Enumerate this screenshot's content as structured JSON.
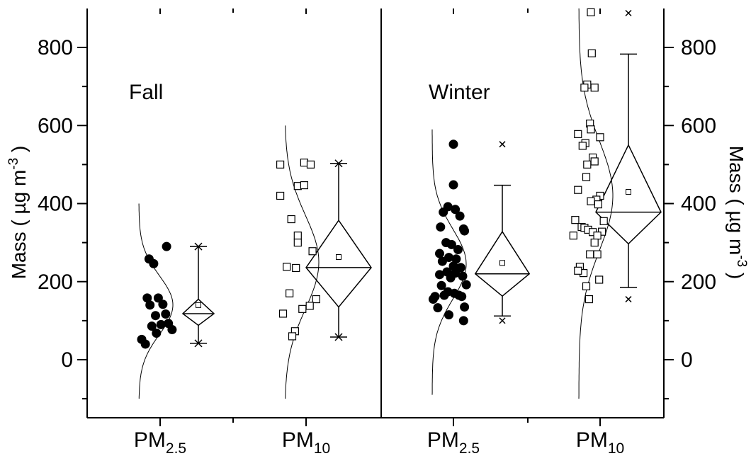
{
  "chart_data": {
    "type": "scatter",
    "ylim": [
      -150,
      900
    ],
    "yticks": [
      0,
      200,
      400,
      600,
      800
    ],
    "ylabel_left": {
      "main": "Mass ( µg m",
      "sup": "-3",
      "end": " )"
    },
    "ylabel_right": {
      "main": "Mass ( µg m",
      "sup": "-3",
      "end": " )"
    },
    "categories": [
      {
        "main": "PM",
        "sub": "2.5"
      },
      {
        "main": "PM",
        "sub": "10"
      },
      {
        "main": "PM",
        "sub": "2.5"
      },
      {
        "main": "PM",
        "sub": "10"
      }
    ],
    "panels": [
      {
        "label": "Fall",
        "groups": [
          {
            "category_index": 0,
            "marker": "filled-circle",
            "points": [
              {
                "jx": -0.12,
                "y": 258
              },
              {
                "jx": -0.07,
                "y": 246
              },
              {
                "jx": 0.07,
                "y": 290
              },
              {
                "jx": -0.14,
                "y": 158
              },
              {
                "jx": -0.02,
                "y": 158
              },
              {
                "jx": -0.11,
                "y": 140
              },
              {
                "jx": 0.03,
                "y": 142
              },
              {
                "jx": -0.05,
                "y": 113
              },
              {
                "jx": 0.06,
                "y": 117
              },
              {
                "jx": 0.01,
                "y": 90
              },
              {
                "jx": 0.09,
                "y": 93
              },
              {
                "jx": -0.09,
                "y": 86
              },
              {
                "jx": -0.04,
                "y": 68
              },
              {
                "jx": 0.13,
                "y": 77
              },
              {
                "jx": -0.2,
                "y": 52
              },
              {
                "jx": -0.16,
                "y": 40
              }
            ],
            "curve": {
              "mean": 140,
              "sd": 75,
              "ymin": -100,
              "ymax": 400
            },
            "box": {
              "q1": 88,
              "median": 118,
              "q3": 155,
              "mean": 140,
              "whisker_low": 42,
              "whisker_high": 290,
              "outliers": []
            }
          },
          {
            "category_index": 1,
            "marker": "open-square",
            "points": [
              {
                "jx": -0.02,
                "y": 505
              },
              {
                "jx": 0.05,
                "y": 500
              },
              {
                "jx": -0.09,
                "y": 445
              },
              {
                "jx": -0.02,
                "y": 447
              },
              {
                "jx": -0.28,
                "y": 500
              },
              {
                "jx": -0.28,
                "y": 420
              },
              {
                "jx": -0.16,
                "y": 360
              },
              {
                "jx": -0.09,
                "y": 318
              },
              {
                "jx": -0.09,
                "y": 300
              },
              {
                "jx": 0.07,
                "y": 278
              },
              {
                "jx": -0.21,
                "y": 238
              },
              {
                "jx": -0.11,
                "y": 235
              },
              {
                "jx": -0.18,
                "y": 170
              },
              {
                "jx": 0.11,
                "y": 155
              },
              {
                "jx": 0.04,
                "y": 138
              },
              {
                "jx": -0.04,
                "y": 130
              },
              {
                "jx": -0.25,
                "y": 118
              },
              {
                "jx": -0.12,
                "y": 73
              },
              {
                "jx": -0.15,
                "y": 60
              }
            ],
            "curve": {
              "mean": 250,
              "sd": 120,
              "ymin": -100,
              "ymax": 600
            },
            "box": {
              "q1": 135,
              "median": 236,
              "q3": 357,
              "mean": 263,
              "whisker_low": 58,
              "whisker_high": 503,
              "outliers": []
            }
          }
        ]
      },
      {
        "label": "Winter",
        "groups": [
          {
            "category_index": 2,
            "marker": "filled-circle",
            "points": [
              {
                "jx": 0.0,
                "y": 552
              },
              {
                "jx": 0.0,
                "y": 448
              },
              {
                "jx": -0.06,
                "y": 392
              },
              {
                "jx": 0.02,
                "y": 385
              },
              {
                "jx": -0.11,
                "y": 378
              },
              {
                "jx": 0.07,
                "y": 368
              },
              {
                "jx": 0.11,
                "y": 335
              },
              {
                "jx": 0.12,
                "y": 330
              },
              {
                "jx": -0.14,
                "y": 340
              },
              {
                "jx": -0.08,
                "y": 300
              },
              {
                "jx": -0.02,
                "y": 295
              },
              {
                "jx": 0.05,
                "y": 282
              },
              {
                "jx": -0.15,
                "y": 272
              },
              {
                "jx": -0.05,
                "y": 262
              },
              {
                "jx": 0.03,
                "y": 258
              },
              {
                "jx": -0.12,
                "y": 252
              },
              {
                "jx": 0.0,
                "y": 240
              },
              {
                "jx": 0.08,
                "y": 236
              },
              {
                "jx": -0.07,
                "y": 225
              },
              {
                "jx": 0.02,
                "y": 222
              },
              {
                "jx": -0.15,
                "y": 218
              },
              {
                "jx": 0.1,
                "y": 214
              },
              {
                "jx": -0.03,
                "y": 210
              },
              {
                "jx": -0.13,
                "y": 190
              },
              {
                "jx": 0.14,
                "y": 192
              },
              {
                "jx": -0.06,
                "y": 174
              },
              {
                "jx": 0.01,
                "y": 170
              },
              {
                "jx": 0.06,
                "y": 165
              },
              {
                "jx": 0.09,
                "y": 162
              },
              {
                "jx": -0.2,
                "y": 162
              },
              {
                "jx": -0.22,
                "y": 155
              },
              {
                "jx": -0.1,
                "y": 165
              },
              {
                "jx": -0.17,
                "y": 133
              },
              {
                "jx": 0.12,
                "y": 135
              },
              {
                "jx": -0.05,
                "y": 115
              },
              {
                "jx": 0.11,
                "y": 100
              }
            ],
            "curve": {
              "mean": 245,
              "sd": 90,
              "ymin": -90,
              "ymax": 590
            },
            "box": {
              "q1": 163,
              "median": 220,
              "q3": 328,
              "mean": 248,
              "whisker_low": 112,
              "whisker_high": 447,
              "outliers": [
                100,
                552
              ]
            }
          },
          {
            "category_index": 3,
            "marker": "open-square",
            "points": [
              {
                "jx": -0.1,
                "y": 890
              },
              {
                "jx": -0.09,
                "y": 785
              },
              {
                "jx": -0.14,
                "y": 705
              },
              {
                "jx": -0.06,
                "y": 697
              },
              {
                "jx": -0.17,
                "y": 697
              },
              {
                "jx": -0.11,
                "y": 605
              },
              {
                "jx": -0.1,
                "y": 590
              },
              {
                "jx": -0.24,
                "y": 578
              },
              {
                "jx": 0.0,
                "y": 570
              },
              {
                "jx": -0.16,
                "y": 555
              },
              {
                "jx": -0.19,
                "y": 548
              },
              {
                "jx": -0.08,
                "y": 518
              },
              {
                "jx": -0.06,
                "y": 508
              },
              {
                "jx": -0.14,
                "y": 500
              },
              {
                "jx": -0.15,
                "y": 468
              },
              {
                "jx": -0.24,
                "y": 435
              },
              {
                "jx": 0.0,
                "y": 420
              },
              {
                "jx": -0.04,
                "y": 410
              },
              {
                "jx": -0.1,
                "y": 406
              },
              {
                "jx": -0.02,
                "y": 398
              },
              {
                "jx": -0.27,
                "y": 358
              },
              {
                "jx": 0.04,
                "y": 355
              },
              {
                "jx": -0.2,
                "y": 340
              },
              {
                "jx": -0.17,
                "y": 338
              },
              {
                "jx": -0.13,
                "y": 333
              },
              {
                "jx": -0.08,
                "y": 327
              },
              {
                "jx": 0.02,
                "y": 328
              },
              {
                "jx": -0.29,
                "y": 318
              },
              {
                "jx": -0.03,
                "y": 318
              },
              {
                "jx": -0.06,
                "y": 300
              },
              {
                "jx": -0.11,
                "y": 270
              },
              {
                "jx": -0.03,
                "y": 270
              },
              {
                "jx": -0.22,
                "y": 238
              },
              {
                "jx": -0.18,
                "y": 222
              },
              {
                "jx": -0.24,
                "y": 228
              },
              {
                "jx": -0.01,
                "y": 205
              },
              {
                "jx": -0.15,
                "y": 188
              },
              {
                "jx": -0.12,
                "y": 155
              }
            ],
            "curve": {
              "mean": 420,
              "sd": 140,
              "ymin": -100,
              "ymax": 900
            },
            "box": {
              "q1": 297,
              "median": 378,
              "q3": 550,
              "mean": 430,
              "whisker_low": 185,
              "whisker_high": 783,
              "outliers": [
                155,
                888
              ]
            }
          }
        ]
      }
    ]
  }
}
